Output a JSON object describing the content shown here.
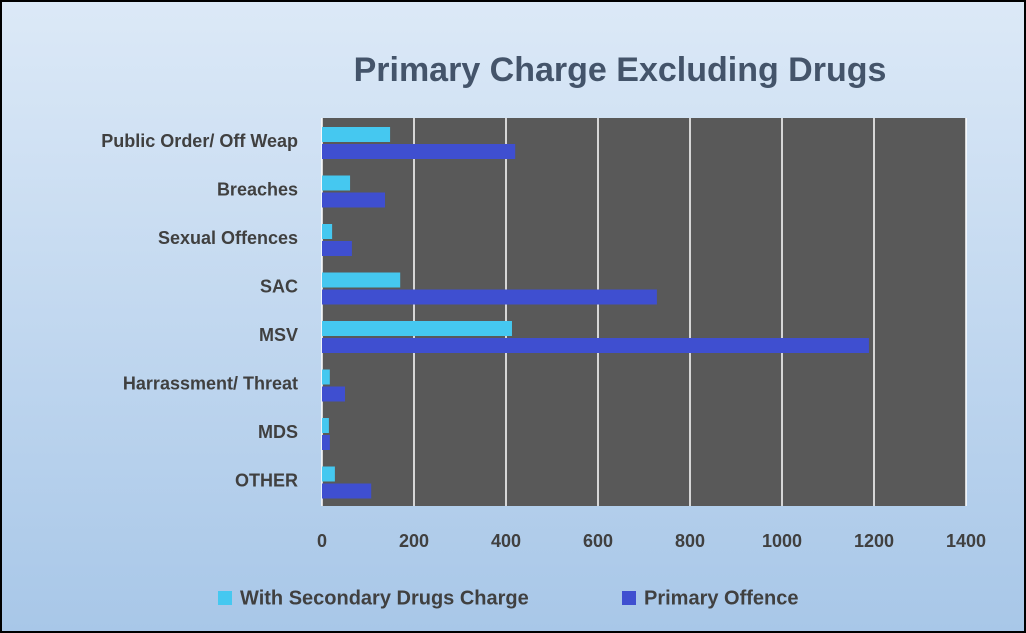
{
  "chart_data": {
    "type": "bar",
    "orientation": "horizontal",
    "title": "Primary Charge Excluding Drugs",
    "categories": [
      "Public Order/ Off Weap",
      "Breaches",
      "Sexual Offences",
      "SAC",
      "MSV",
      "Harrassment/ Threat",
      "MDS",
      "OTHER"
    ],
    "series": [
      {
        "name": "With Secondary Drugs Charge",
        "color": "#45c8f0",
        "values": [
          148,
          61,
          22,
          170,
          413,
          17,
          15,
          28
        ]
      },
      {
        "name": "Primary Offence",
        "color": "#3f4fd0",
        "values": [
          420,
          137,
          65,
          728,
          1189,
          50,
          17,
          107
        ]
      }
    ],
    "xlim": [
      0,
      1400
    ],
    "xticks": [
      0,
      200,
      400,
      600,
      800,
      1000,
      1200,
      1400
    ],
    "grid": true,
    "legend": "bottom"
  }
}
